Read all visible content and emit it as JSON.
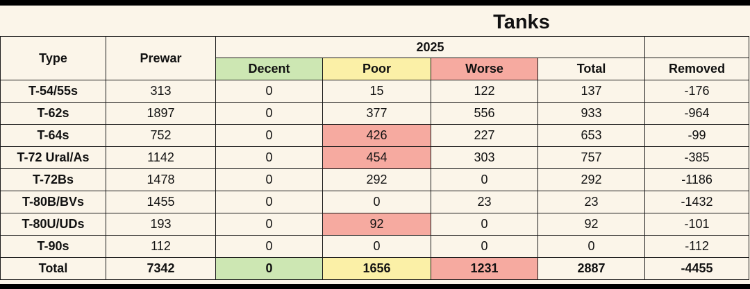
{
  "title": "Tanks",
  "header": {
    "type": "Type",
    "prewar": "Prewar",
    "year": "2025",
    "decent": "Decent",
    "poor": "Poor",
    "worse": "Worse",
    "total": "Total",
    "removed": "Removed"
  },
  "colors": {
    "decent": "#cde7b3",
    "poor": "#fbf0a7",
    "worse": "#f6aaa0"
  },
  "rows": [
    {
      "type": "T-54/55s",
      "prewar": "313",
      "decent": "0",
      "poor": "15",
      "worse": "122",
      "total": "137",
      "removed": "-176"
    },
    {
      "type": "T-62s",
      "prewar": "1897",
      "decent": "0",
      "poor": "377",
      "worse": "556",
      "total": "933",
      "removed": "-964"
    },
    {
      "type": "T-64s",
      "prewar": "752",
      "decent": "0",
      "poor": "426",
      "worse": "227",
      "total": "653",
      "removed": "-99"
    },
    {
      "type": "T-72 Ural/As",
      "prewar": "1142",
      "decent": "0",
      "poor": "454",
      "worse": "303",
      "total": "757",
      "removed": "-385"
    },
    {
      "type": "T-72Bs",
      "prewar": "1478",
      "decent": "0",
      "poor": "292",
      "worse": "0",
      "total": "292",
      "removed": "-1186"
    },
    {
      "type": "T-80B/BVs",
      "prewar": "1455",
      "decent": "0",
      "poor": "0",
      "worse": "23",
      "total": "23",
      "removed": "-1432"
    },
    {
      "type": "T-80U/UDs",
      "prewar": "193",
      "decent": "0",
      "poor": "92",
      "worse": "0",
      "total": "92",
      "removed": "-101"
    },
    {
      "type": "T-90s",
      "prewar": "112",
      "decent": "0",
      "poor": "0",
      "worse": "0",
      "total": "0",
      "removed": "-112"
    }
  ],
  "totals": {
    "type": "Total",
    "prewar": "7342",
    "decent": "0",
    "poor": "1656",
    "worse": "1231",
    "total": "2887",
    "removed": "-4455"
  }
}
